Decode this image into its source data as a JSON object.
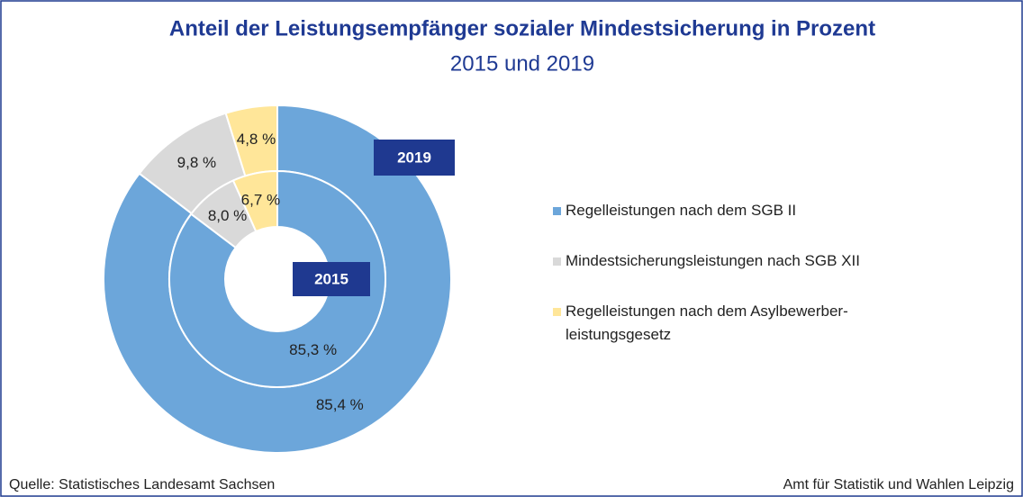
{
  "chart_data": {
    "type": "donut",
    "title": "Anteil der Leistungsempfänger sozialer Mindestsicherung in Prozent",
    "subtitle": "2015 und 2019",
    "categories": [
      "Regelleistungen nach dem SGB II",
      "Mindestsicherungsleistungen nach SGB XII",
      "Regelleistungen nach dem Asylbewerber-\nleistungsgesetz"
    ],
    "colors": [
      "#6ca6da",
      "#d9d9d9",
      "#ffe699"
    ],
    "series": [
      {
        "name": "2019",
        "values": [
          85.4,
          9.8,
          4.8
        ],
        "value_labels": [
          "85,4 %",
          "9,8 %",
          "4,8 %"
        ]
      },
      {
        "name": "2015",
        "values": [
          85.3,
          8.0,
          6.7
        ],
        "value_labels": [
          "85,3 %",
          "8,0 %",
          "6,7 %"
        ]
      }
    ]
  },
  "footer": {
    "source": "Quelle: Statistisches Landesamt Sachsen",
    "credit": "Amt für Statistik und Wahlen Leipzig"
  }
}
